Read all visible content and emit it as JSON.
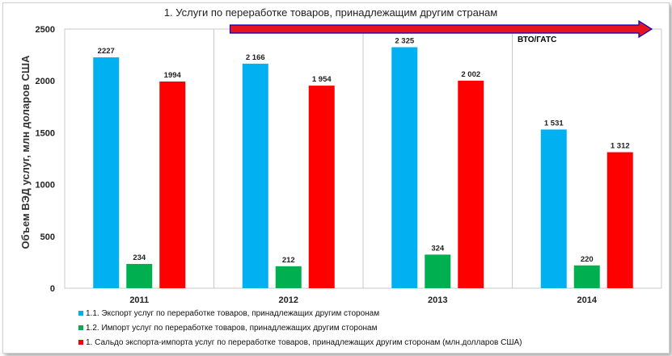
{
  "chart_data": {
    "type": "bar",
    "title": "1. Услуги по переработке товаров, принадлежащим другим странам",
    "ylabel": "Объем ВЭД услуг, млн доларов  США",
    "xlabel": "",
    "ylim": [
      0,
      2500
    ],
    "yticks": [
      "0",
      "500",
      "1000",
      "1500",
      "2000",
      "2500"
    ],
    "categories": [
      "2011",
      "2012",
      "2013",
      "2014"
    ],
    "grid": "vertical separators between categories",
    "legend_position": "bottom-left",
    "series": [
      {
        "name": "1.1. Экспорт услуг по переработке товаров, принадлежащих другим сторонам",
        "color": "#00b0f0",
        "values": [
          2227,
          2166,
          2325,
          1531
        ],
        "labels": [
          "2227",
          "2 166",
          "2 325",
          "1 531"
        ]
      },
      {
        "name": "1.2. Импорт услуг по переработке товаров, принадлежащих другим сторонам",
        "color": "#00b050",
        "values": [
          234,
          212,
          324,
          220
        ],
        "labels": [
          "234",
          "212",
          "324",
          "220"
        ]
      },
      {
        "name": "1.  Сальдо экспорта-импорта услуг по переработке товаров, принадлежащих другим сторонам (млн.долларов США)",
        "color": "#ff0000",
        "values": [
          1994,
          1954,
          2002,
          1312
        ],
        "labels": [
          "1994",
          "1 954",
          "2 002",
          "1 312"
        ]
      }
    ],
    "annotation": {
      "text": "ВТО/ГАТС",
      "arrow_color": "#e8141b",
      "arrow_outline": "#0000c8",
      "arrow_start_category": "2012",
      "arrow_end": "right edge of plot"
    }
  }
}
